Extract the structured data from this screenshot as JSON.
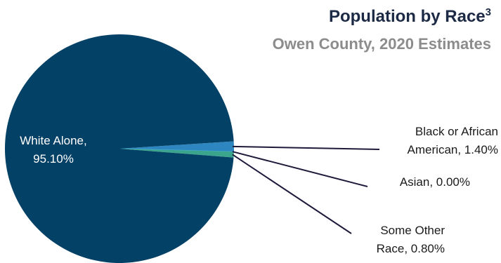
{
  "chart_data": {
    "type": "pie",
    "title": "Population by Race",
    "title_superscript": "3",
    "subtitle": "Owen County, 2020 Estimates",
    "slices": [
      {
        "label": "White Alone, 95.10%",
        "value": 95.1,
        "color": "#044166",
        "label_color": "#ffffff"
      },
      {
        "label": "Black or African American, 1.40%",
        "value": 1.4,
        "color": "#2e86c1",
        "label_color": "#1a1a1a"
      },
      {
        "label": "Asian, 0.00%",
        "value": 0.0,
        "color": "#4fb3d9",
        "label_color": "#1a1a1a"
      },
      {
        "label": "Some Other Race, 0.80%",
        "value": 0.8,
        "color": "#3aa58c",
        "label_color": "#1a1a1a"
      }
    ],
    "leader_line_color": "#1d1a3a",
    "legend": "none"
  }
}
